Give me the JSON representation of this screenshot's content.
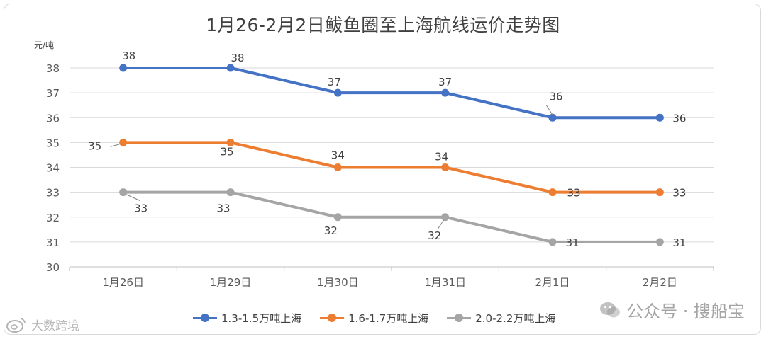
{
  "chart_data": {
    "type": "line",
    "title": "1月26-2月2日鲅鱼圈至上海航线运价走势图",
    "ylabel": "元/吨",
    "xlabel": "",
    "categories": [
      "1月26日",
      "1月29日",
      "1月30日",
      "1月31日",
      "2月1日",
      "2月2日"
    ],
    "ylim": [
      30,
      38
    ],
    "yticks": [
      30,
      31,
      32,
      33,
      34,
      35,
      36,
      37,
      38
    ],
    "grid": true,
    "legend_position": "bottom",
    "series": [
      {
        "name": "1.3-1.5万吨上海",
        "color": "#4472c4",
        "values": [
          38,
          38,
          37,
          37,
          36,
          36
        ]
      },
      {
        "name": "1.6-1.7万吨上海",
        "color": "#ed7d31",
        "values": [
          35,
          35,
          34,
          34,
          33,
          33
        ]
      },
      {
        "name": "2.0-2.2万吨上海",
        "color": "#a5a5a5",
        "values": [
          33,
          33,
          32,
          32,
          31,
          31
        ]
      }
    ]
  },
  "watermark": {
    "right_text": "公众号 · 搜船宝",
    "left_text": "大数跨境",
    "right_icon": "wechat-icon",
    "left_icon": "weibo-icon"
  }
}
